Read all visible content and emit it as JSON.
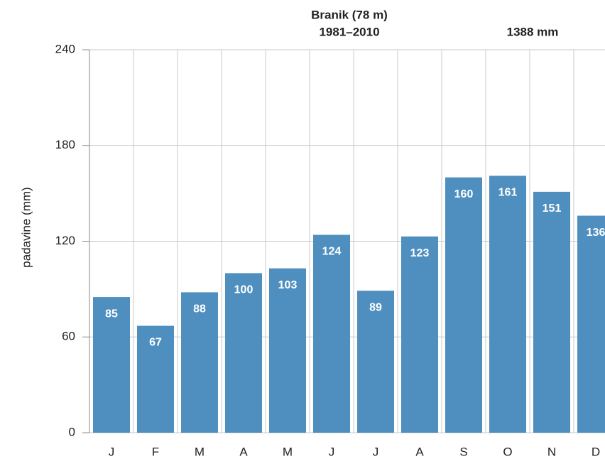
{
  "chart_data": {
    "type": "bar",
    "title": "Branik (78 m)",
    "subtitle": "1981–2010",
    "annotation": "1388 mm",
    "y_label": "padavine (mm)",
    "categories": [
      "J",
      "F",
      "M",
      "A",
      "M",
      "J",
      "J",
      "A",
      "S",
      "O",
      "N",
      "D"
    ],
    "values": [
      85,
      67,
      88,
      100,
      103,
      124,
      89,
      123,
      160,
      161,
      151,
      136
    ],
    "color": "#4f8fbf",
    "ylim": [
      0,
      240
    ],
    "yticks": [
      0,
      60,
      120,
      180,
      240
    ],
    "grid": true
  }
}
